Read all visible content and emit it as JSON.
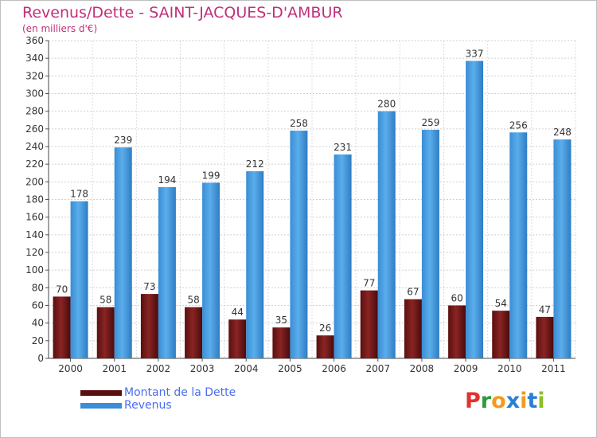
{
  "chart_data": {
    "type": "bar",
    "title": "Revenus/Dette - SAINT-JACQUES-D'AMBUR",
    "subtitle": "(en milliers d'€)",
    "categories": [
      "2000",
      "2001",
      "2002",
      "2003",
      "2004",
      "2005",
      "2006",
      "2007",
      "2008",
      "2009",
      "2010",
      "2011"
    ],
    "series": [
      {
        "name": "Montant de la Dette",
        "color": "#7a1a1a",
        "values": [
          70,
          58,
          73,
          58,
          44,
          35,
          26,
          77,
          67,
          60,
          54,
          47
        ]
      },
      {
        "name": "Revenus",
        "color": "#4a9fe0",
        "values": [
          178,
          239,
          194,
          199,
          212,
          258,
          231,
          280,
          259,
          337,
          256,
          248
        ]
      }
    ],
    "ylim": [
      0,
      360
    ],
    "ytick_step": 20,
    "grid": true,
    "legend_position": "bottom-left"
  },
  "logo": {
    "text": "Proxiti",
    "colors": [
      "#e3322b",
      "#2f9a3a",
      "#f39a1e",
      "#2a7fd4",
      "#f39a1e",
      "#2a7fd4",
      "#8cbf26"
    ]
  }
}
